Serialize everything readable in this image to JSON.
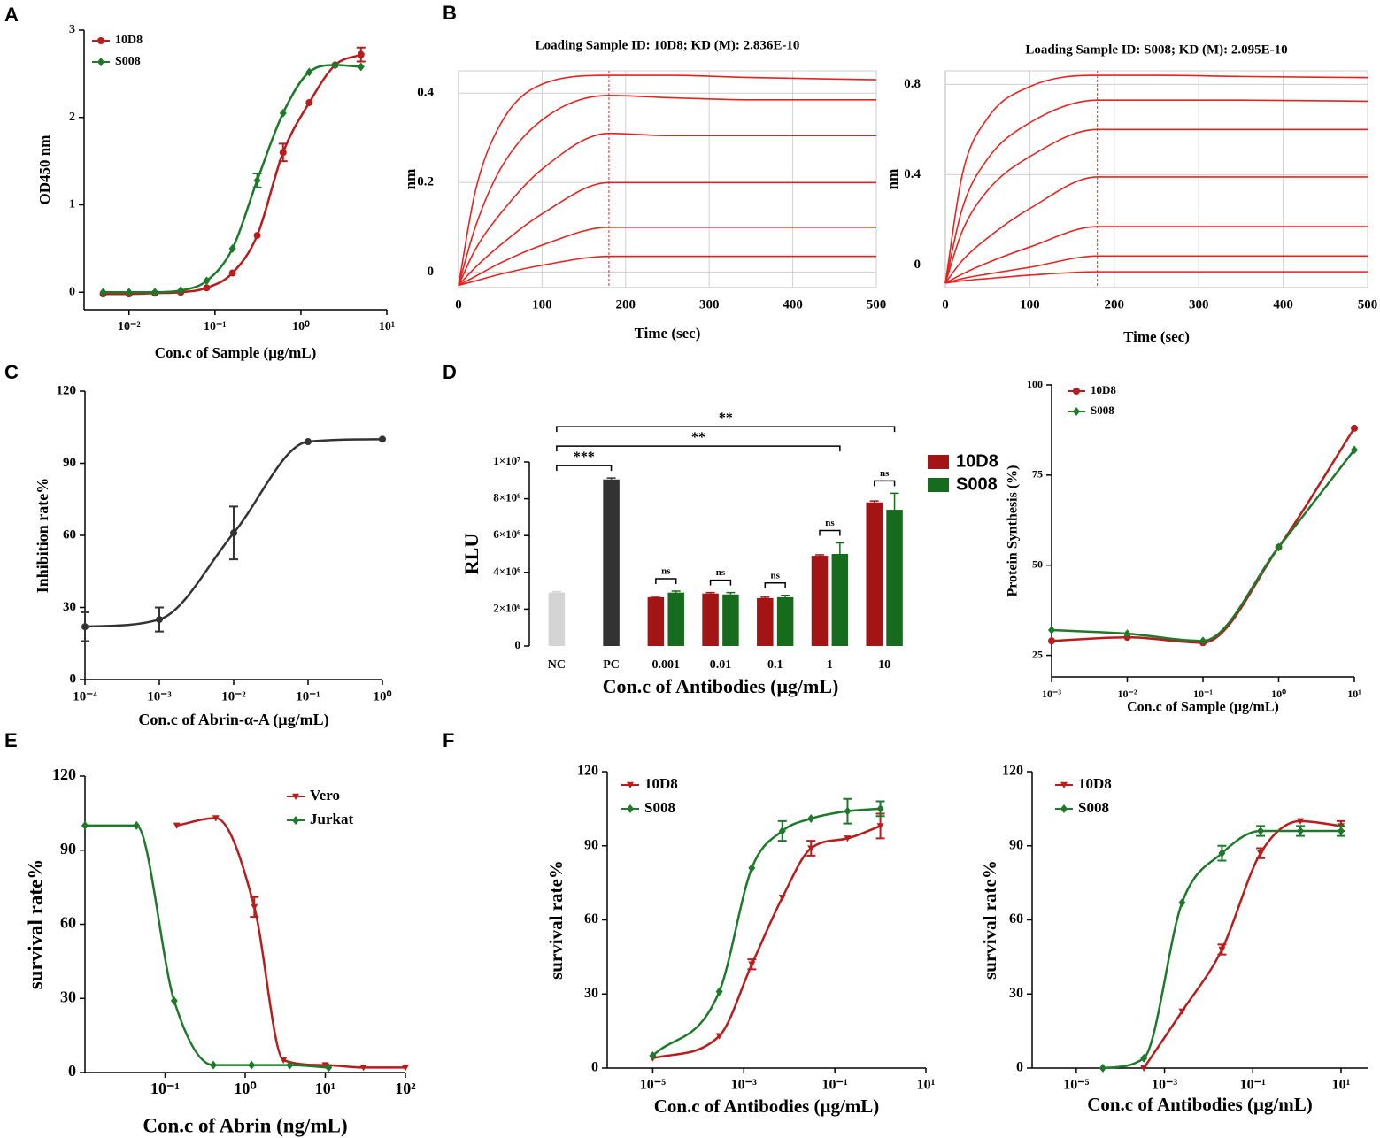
{
  "chart_data": [
    {
      "type": "line",
      "panel": "A",
      "xlabel": "Con.c of Sample (μg/mL)",
      "ylabel": "OD450 nm",
      "xscale": "log",
      "xlim": [
        0.003,
        10
      ],
      "xticks": [
        {
          "value": 0.01,
          "label": "10⁻²"
        },
        {
          "value": 0.1,
          "label": "10⁻¹"
        },
        {
          "value": 1,
          "label": "10⁰"
        },
        {
          "value": 10,
          "label": "10¹"
        }
      ],
      "ylim": [
        -0.2,
        3
      ],
      "yticks": [
        0,
        1,
        2,
        3
      ],
      "legend": "upper left",
      "x": [
        0.005,
        0.01,
        0.02,
        0.04,
        0.08,
        0.16,
        0.31,
        0.62,
        1.25,
        2.5,
        5
      ],
      "series": [
        {
          "name": "10D8",
          "color": "#b81c1c",
          "marker": "circle",
          "values": [
            -0.02,
            -0.02,
            -0.01,
            0.0,
            0.05,
            0.22,
            0.65,
            1.6,
            2.17,
            2.6,
            2.72
          ],
          "errors": [
            0,
            0,
            0,
            0,
            0,
            0,
            0,
            0.1,
            0,
            0,
            0.08
          ]
        },
        {
          "name": "S008",
          "color": "#1d7a2a",
          "marker": "diamond",
          "values": [
            0.0,
            0.0,
            0.0,
            0.02,
            0.13,
            0.5,
            1.28,
            2.05,
            2.52,
            2.6,
            2.58
          ],
          "errors": [
            0,
            0,
            0,
            0,
            0,
            0,
            0.08,
            0,
            0,
            0,
            0
          ]
        }
      ]
    },
    {
      "type": "line",
      "panel": "B",
      "title": "Loading Sample ID: 10D8; KD (M): 2.836E-10",
      "xlabel": "Time (sec)",
      "ylabel": "nm",
      "xlim": [
        0,
        500
      ],
      "xticks": [
        0,
        100,
        200,
        300,
        400,
        500
      ],
      "ylim": [
        -0.035,
        0.45
      ],
      "yticks": [
        0,
        0.2,
        0.4
      ],
      "grid": true,
      "markers": false,
      "vline": 180,
      "x": [
        0,
        20,
        50,
        100,
        180,
        250,
        350,
        500
      ],
      "series": [
        {
          "color": "#e8231f",
          "values": [
            -0.03,
            0.18,
            0.33,
            0.42,
            0.44,
            0.44,
            0.435,
            0.43
          ]
        },
        {
          "color": "#e8231f",
          "values": [
            -0.03,
            0.1,
            0.23,
            0.34,
            0.395,
            0.39,
            0.385,
            0.385
          ]
        },
        {
          "color": "#e8231f",
          "values": [
            -0.03,
            0.05,
            0.13,
            0.23,
            0.31,
            0.305,
            0.305,
            0.305
          ]
        },
        {
          "color": "#e8231f",
          "values": [
            -0.03,
            0.01,
            0.06,
            0.13,
            0.2,
            0.2,
            0.2,
            0.2
          ]
        },
        {
          "color": "#e8231f",
          "values": [
            -0.03,
            -0.01,
            0.02,
            0.06,
            0.1,
            0.1,
            0.1,
            0.1
          ]
        },
        {
          "color": "#e8231f",
          "values": [
            -0.03,
            -0.02,
            -0.005,
            0.015,
            0.035,
            0.035,
            0.035,
            0.035
          ]
        }
      ]
    },
    {
      "type": "line",
      "title": "Loading Sample ID: S008; KD (M): 2.095E-10",
      "xlabel": "Time (sec)",
      "ylabel": "nm",
      "xlim": [
        0,
        500
      ],
      "xticks": [
        0,
        100,
        200,
        300,
        400,
        500
      ],
      "ylim": [
        -0.1,
        0.86
      ],
      "yticks": [
        0,
        0.4,
        0.8
      ],
      "grid": true,
      "markers": false,
      "vline": 180,
      "x": [
        0,
        20,
        50,
        100,
        180,
        250,
        350,
        500
      ],
      "series": [
        {
          "color": "#e8231f",
          "values": [
            -0.08,
            0.4,
            0.65,
            0.79,
            0.84,
            0.84,
            0.835,
            0.83
          ]
        },
        {
          "color": "#e8231f",
          "values": [
            -0.08,
            0.25,
            0.47,
            0.63,
            0.73,
            0.73,
            0.73,
            0.725
          ]
        },
        {
          "color": "#e8231f",
          "values": [
            -0.08,
            0.15,
            0.33,
            0.48,
            0.6,
            0.6,
            0.6,
            0.6
          ]
        },
        {
          "color": "#e8231f",
          "values": [
            -0.08,
            0.02,
            0.12,
            0.25,
            0.39,
            0.39,
            0.39,
            0.39
          ]
        },
        {
          "color": "#e8231f",
          "values": [
            -0.08,
            -0.04,
            0.01,
            0.08,
            0.17,
            0.17,
            0.17,
            0.17
          ]
        },
        {
          "color": "#e8231f",
          "values": [
            -0.08,
            -0.06,
            -0.04,
            -0.01,
            0.04,
            0.04,
            0.04,
            0.04
          ]
        },
        {
          "color": "#e8231f",
          "values": [
            -0.08,
            -0.07,
            -0.06,
            -0.045,
            -0.03,
            -0.03,
            -0.03,
            -0.03
          ]
        }
      ]
    },
    {
      "type": "line",
      "panel": "C",
      "xlabel": "Con.c of Abrin-α-A (μg/mL)",
      "ylabel": "Inhibition rate%",
      "xscale": "log",
      "xlim": [
        0.0001,
        1
      ],
      "xticks": [
        {
          "value": 0.0001,
          "label": "10⁻⁴"
        },
        {
          "value": 0.001,
          "label": "10⁻³"
        },
        {
          "value": 0.01,
          "label": "10⁻²"
        },
        {
          "value": 0.1,
          "label": "10⁻¹"
        },
        {
          "value": 1,
          "label": "10⁰"
        }
      ],
      "ylim": [
        0,
        120
      ],
      "yticks": [
        0,
        30,
        60,
        90,
        120
      ],
      "series": [
        {
          "color": "#333333",
          "marker": "circle",
          "x": [
            0.0001,
            0.001,
            0.01,
            0.1,
            1
          ],
          "values": [
            22,
            25,
            61,
            99,
            100
          ],
          "errors": [
            6,
            5,
            11,
            0,
            0
          ]
        }
      ]
    },
    {
      "type": "bar",
      "panel": "D",
      "xlabel": "Con.c of Antibodies (μg/mL)",
      "ylabel": "RLU",
      "categories": [
        "NC",
        "PC",
        "0.001",
        "0.01",
        "0.1",
        "1",
        "10"
      ],
      "ylim": [
        0,
        10000000
      ],
      "yticks": [
        0,
        {
          "value": 2000000,
          "label": "2×10⁶"
        },
        {
          "value": 4000000,
          "label": "4×10⁶"
        },
        {
          "value": 6000000,
          "label": "6×10⁶"
        },
        {
          "value": 8000000,
          "label": "8×10⁶"
        },
        {
          "value": 10000000,
          "label": "1×10⁷"
        }
      ],
      "legend": "right",
      "controls": {
        "values": [
          2900000,
          9050000,
          null,
          null,
          null,
          null,
          null
        ],
        "colors": [
          "#d4d4d4",
          "#333333"
        ],
        "errors": [
          50000,
          80000,
          null,
          null,
          null,
          null,
          null
        ]
      },
      "series": [
        {
          "name": "10D8",
          "color": "#a31515",
          "values": [
            null,
            null,
            2650000,
            2850000,
            2600000,
            4900000,
            7800000
          ],
          "errors": [
            null,
            null,
            50000,
            50000,
            50000,
            50000,
            80000
          ]
        },
        {
          "name": "S008",
          "color": "#176b1c",
          "values": [
            null,
            null,
            2900000,
            2800000,
            2650000,
            5000000,
            7400000
          ],
          "errors": [
            null,
            null,
            80000,
            100000,
            100000,
            600000,
            900000
          ]
        }
      ],
      "annotations": [
        {
          "text": "***",
          "from": 0,
          "to": 1
        },
        {
          "text": "**",
          "from": 0,
          "to": 5
        },
        {
          "text": "**",
          "from": 0,
          "to": 6
        },
        {
          "text": "ns",
          "from": 2,
          "to": 2
        },
        {
          "text": "ns",
          "from": 3,
          "to": 3
        },
        {
          "text": "ns",
          "from": 4,
          "to": 4
        },
        {
          "text": "ns",
          "from": 5,
          "to": 5
        },
        {
          "text": "ns",
          "from": 6,
          "to": 6
        }
      ]
    },
    {
      "type": "line",
      "xlabel": "Con.c of Sample (μg/mL)",
      "ylabel": "Protein Synthesis (%)",
      "xscale": "log",
      "xlim": [
        0.001,
        10
      ],
      "xticks": [
        {
          "value": 0.001,
          "label": "10⁻³"
        },
        {
          "value": 0.01,
          "label": "10⁻²"
        },
        {
          "value": 0.1,
          "label": "10⁻¹"
        },
        {
          "value": 1,
          "label": "10⁰"
        },
        {
          "value": 10,
          "label": "10¹"
        }
      ],
      "ylim": [
        19,
        100
      ],
      "yticks": [
        25,
        50,
        75,
        100
      ],
      "legend": "upper left",
      "x": [
        0.001,
        0.01,
        0.1,
        1,
        10
      ],
      "series": [
        {
          "name": "10D8",
          "color": "#b81c1c",
          "marker": "circle",
          "values": [
            29,
            30,
            28.5,
            55,
            88
          ]
        },
        {
          "name": "S008",
          "color": "#1d7a2a",
          "marker": "diamond",
          "values": [
            32,
            31,
            29,
            55,
            82
          ]
        }
      ]
    },
    {
      "type": "line",
      "panel": "E",
      "xlabel": "Con.c of Abrin (ng/mL)",
      "ylabel": "survival rate%",
      "xscale": "log",
      "xlim": [
        0.01,
        100
      ],
      "xticks": [
        {
          "value": 0.1,
          "label": "10⁻¹"
        },
        {
          "value": 1,
          "label": "10⁰"
        },
        {
          "value": 10,
          "label": "10¹"
        },
        {
          "value": 100,
          "label": "10²"
        }
      ],
      "ylim": [
        0,
        120
      ],
      "yticks": [
        0,
        30,
        60,
        90,
        120
      ],
      "legend": "upper right",
      "series": [
        {
          "name": "Vero",
          "color": "#b81c1c",
          "marker": "triangle-down",
          "x": [
            0.14,
            0.43,
            1.3,
            3,
            10,
            30,
            100
          ],
          "values": [
            100,
            103,
            67,
            5,
            3,
            2,
            2
          ],
          "errors": [
            0,
            0,
            4,
            0,
            0,
            0,
            0
          ]
        },
        {
          "name": "Jurkat",
          "color": "#1d7a2a",
          "marker": "diamond",
          "x": [
            0.01,
            0.044,
            0.13,
            0.4,
            1.2,
            3.6,
            11
          ],
          "values": [
            100,
            100,
            29,
            3,
            3,
            3,
            2
          ]
        }
      ]
    },
    {
      "type": "line",
      "panel": "F",
      "xlabel": "Con.c of Antibodies (μg/mL)",
      "ylabel": "survival rate%",
      "xscale": "log",
      "xlim": [
        1e-06,
        10
      ],
      "xticks": [
        {
          "value": 1e-05,
          "label": "10⁻⁵"
        },
        {
          "value": 0.001,
          "label": "10⁻³"
        },
        {
          "value": 0.1,
          "label": "10⁻¹"
        },
        {
          "value": 10,
          "label": "10¹"
        }
      ],
      "ylim": [
        0,
        120
      ],
      "yticks": [
        0,
        30,
        60,
        90,
        120
      ],
      "legend": "upper left",
      "x": [
        1e-05,
        0.00029,
        0.0015,
        0.007,
        0.03,
        0.19,
        1
      ],
      "series": [
        {
          "name": "10D8",
          "color": "#b81c1c",
          "marker": "triangle-down",
          "values": [
            4,
            13,
            42,
            69,
            89,
            93,
            98
          ],
          "errors": [
            0,
            0,
            2,
            0,
            3,
            0,
            5
          ]
        },
        {
          "name": "S008",
          "color": "#1d7a2a",
          "marker": "diamond",
          "values": [
            5,
            31,
            81,
            96,
            101,
            104,
            105
          ],
          "errors": [
            0,
            0,
            0,
            4,
            0,
            5,
            3
          ]
        }
      ]
    },
    {
      "type": "line",
      "xlabel": "Con.c of Antibodies (μg/mL)",
      "ylabel": "survival rate%",
      "xscale": "log",
      "xlim": [
        1e-06,
        40
      ],
      "xticks": [
        {
          "value": 1e-05,
          "label": "10⁻⁵"
        },
        {
          "value": 0.001,
          "label": "10⁻³"
        },
        {
          "value": 0.1,
          "label": "10⁻¹"
        },
        {
          "value": 10,
          "label": "10¹"
        }
      ],
      "ylim": [
        0,
        120
      ],
      "yticks": [
        0,
        30,
        60,
        90,
        120
      ],
      "legend": "upper left",
      "series": [
        {
          "name": "10D8",
          "color": "#b81c1c",
          "marker": "triangle-down",
          "x": [
            0.00034,
            0.0025,
            0.02,
            0.15,
            1.2,
            10
          ],
          "values": [
            0,
            23,
            48,
            87,
            100,
            98
          ],
          "errors": [
            0,
            0,
            2,
            2,
            0,
            2
          ]
        },
        {
          "name": "S008",
          "color": "#1d7a2a",
          "marker": "diamond",
          "x": [
            4e-05,
            0.00034,
            0.0025,
            0.02,
            0.15,
            1.2,
            10
          ],
          "values": [
            0,
            4,
            67,
            87,
            96,
            96,
            96
          ],
          "errors": [
            0,
            0,
            0,
            3,
            2,
            2,
            2
          ]
        }
      ]
    }
  ]
}
